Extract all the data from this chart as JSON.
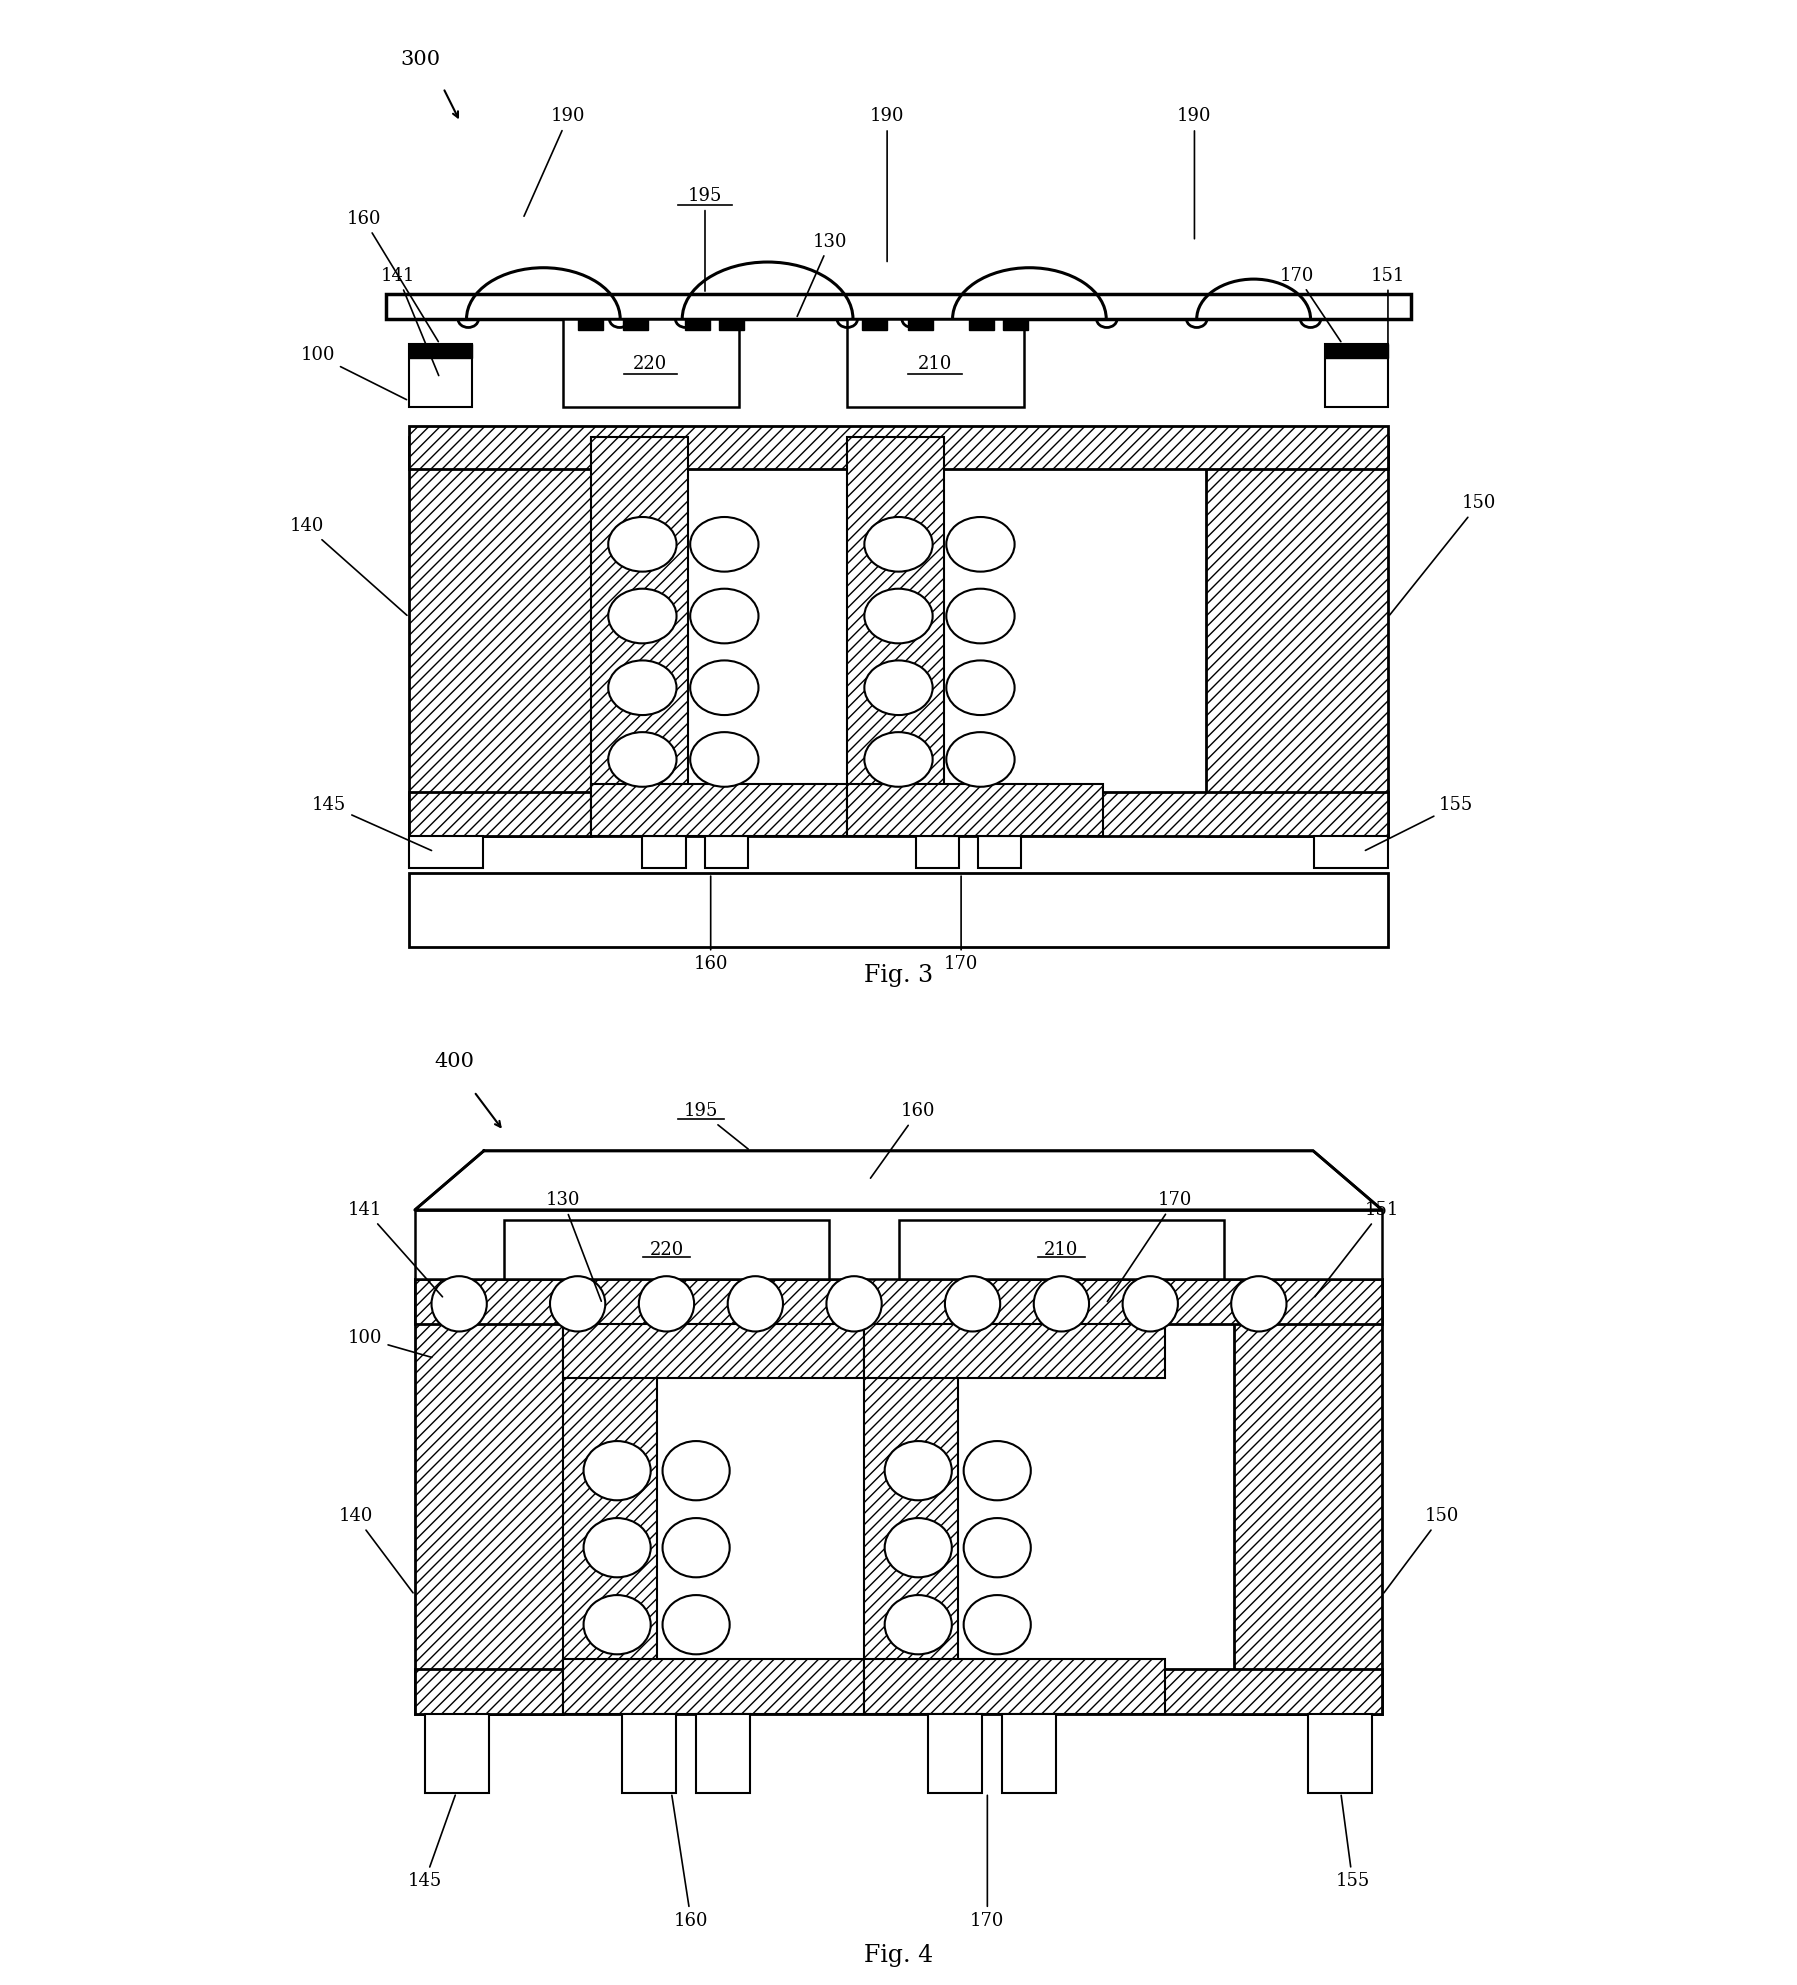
{
  "fig_width": 17.97,
  "fig_height": 19.85,
  "bg_color": "#ffffff"
}
